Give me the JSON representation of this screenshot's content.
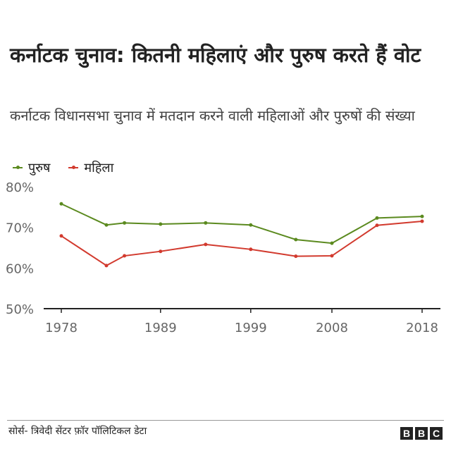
{
  "title": "कर्नाटक चुनाव: कितनी महिलाएं और पुरुष करते हैं वोट",
  "subtitle": "कर्नाटक विधानसभा चुनाव में मतदान करने वाली महिलाओं और पुरुषों की संख्या",
  "source": "सोर्स- त्रिवेदी सेंटर फ़ॉर पॉलिटिकल डेटा",
  "logo": "BBC",
  "chart_data": {
    "type": "line",
    "x": [
      1978,
      1983,
      1985,
      1989,
      1994,
      1999,
      2004,
      2008,
      2013,
      2018
    ],
    "series": [
      {
        "name": "पुरुष",
        "color": "#5b8a1f",
        "values": [
          75.8,
          70.6,
          71.1,
          70.8,
          71.1,
          70.6,
          67.0,
          66.1,
          72.3,
          72.7
        ]
      },
      {
        "name": "महिला",
        "color": "#d23a2e",
        "values": [
          67.9,
          60.6,
          63.0,
          64.1,
          65.8,
          64.6,
          62.9,
          63.0,
          70.5,
          71.5
        ]
      }
    ],
    "xticks": [
      "1978",
      "1989",
      "1999",
      "2008",
      "2018"
    ],
    "yticks": [
      "50%",
      "60%",
      "70%",
      "80%"
    ],
    "ylim": [
      50,
      80
    ],
    "xlim": [
      1978,
      2018
    ],
    "grid": false,
    "legend": "top-left"
  }
}
